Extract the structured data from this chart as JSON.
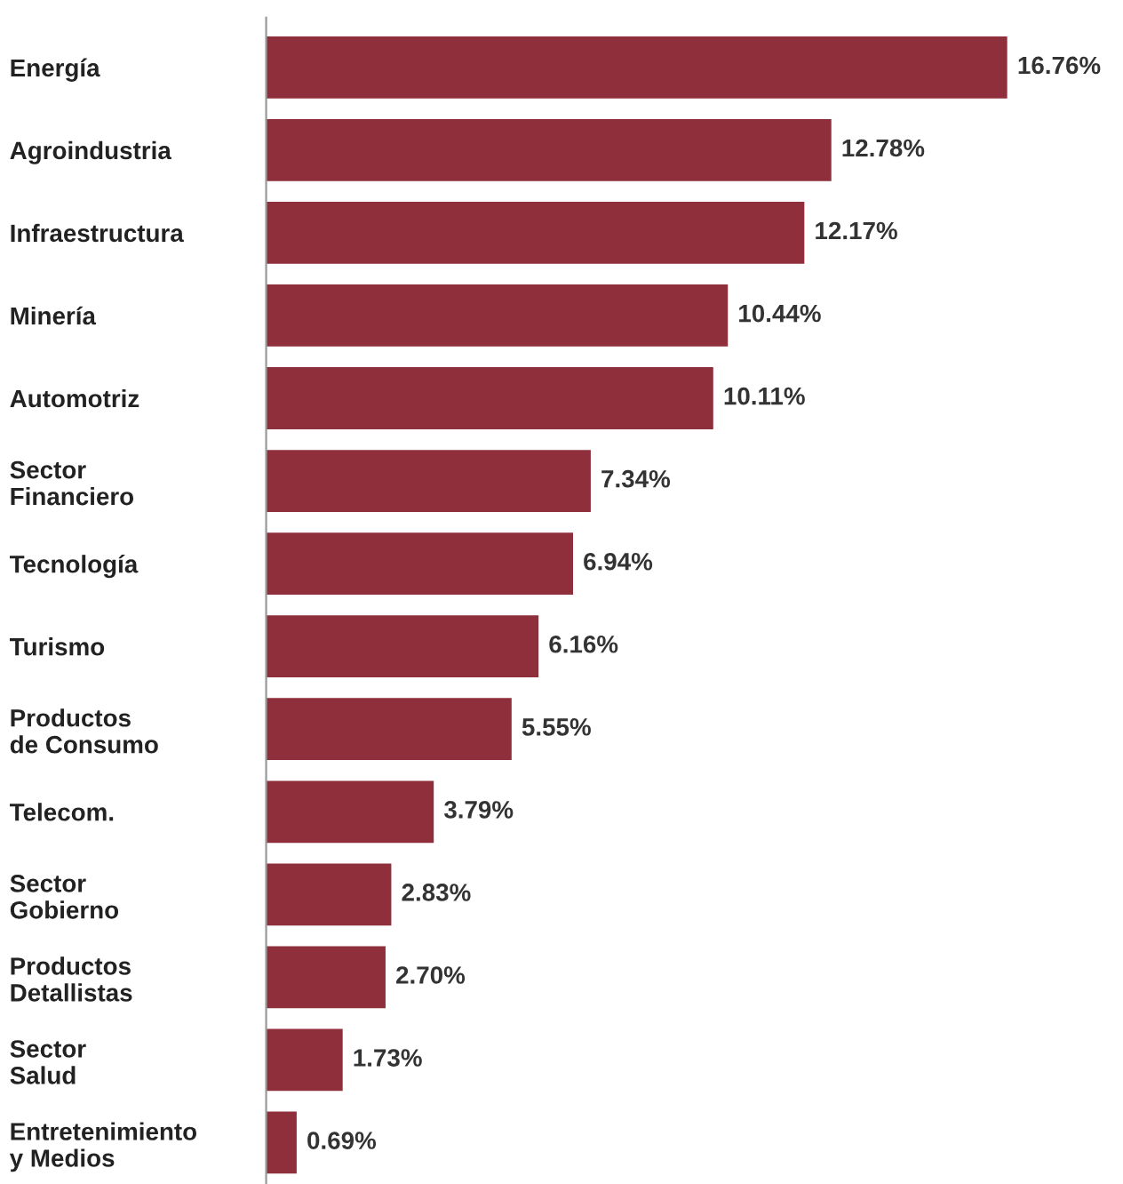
{
  "chart_data": {
    "type": "bar",
    "orientation": "horizontal",
    "categories": [
      "Energía",
      "Agroindustria",
      "Infraestructura",
      "Minería",
      "Automotriz",
      "Sector\nFinanciero",
      "Tecnología",
      "Turismo",
      "Productos\nde Consumo",
      "Telecom.",
      "Sector\nGobierno",
      "Productos\nDetallistas",
      "Sector\nSalud",
      "Entretenimiento\ny Medios"
    ],
    "values": [
      16.76,
      12.78,
      12.17,
      10.44,
      10.11,
      7.34,
      6.94,
      6.16,
      5.55,
      3.79,
      2.83,
      2.7,
      1.73,
      0.69
    ],
    "value_labels": [
      "16.76%",
      "12.78%",
      "12.17%",
      "10.44%",
      "10.11%",
      "7.34%",
      "6.94%",
      "6.16%",
      "5.55%",
      "3.79%",
      "2.83%",
      "2.70%",
      "1.73%",
      "0.69%"
    ],
    "color": "#8e2f3b",
    "tick_labels": "y",
    "grid": false,
    "legend": false
  }
}
